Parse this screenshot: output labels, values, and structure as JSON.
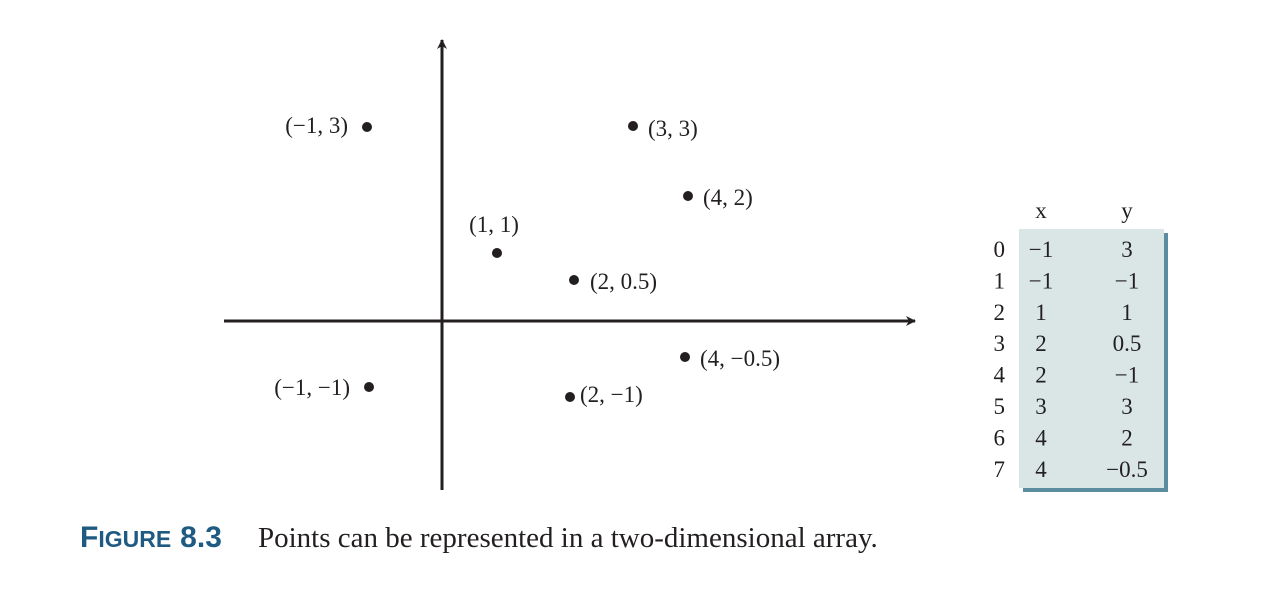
{
  "chart_data": {
    "type": "scatter",
    "points": [
      {
        "x": -1,
        "y": 3,
        "label": "(−1, 3)"
      },
      {
        "x": 3,
        "y": 3,
        "label": "(3, 3)"
      },
      {
        "x": 4,
        "y": 2,
        "label": "(4, 2)"
      },
      {
        "x": 1,
        "y": 1,
        "label": "(1, 1)"
      },
      {
        "x": 2,
        "y": 0.5,
        "label": "(2, 0.5)"
      },
      {
        "x": 4,
        "y": -0.5,
        "label": "(4, −0.5)"
      },
      {
        "x": -1,
        "y": -1,
        "label": "(−1, −1)"
      },
      {
        "x": 2,
        "y": -1,
        "label": "(2, −1)"
      }
    ],
    "grid": false
  },
  "table": {
    "headers": [
      "x",
      "y"
    ],
    "rows": [
      {
        "index": "0",
        "x": "−1",
        "y": "3"
      },
      {
        "index": "1",
        "x": "−1",
        "y": "−1"
      },
      {
        "index": "2",
        "x": "1",
        "y": "1"
      },
      {
        "index": "3",
        "x": "2",
        "y": "0.5"
      },
      {
        "index": "4",
        "x": "2",
        "y": "−1"
      },
      {
        "index": "5",
        "x": "3",
        "y": "3"
      },
      {
        "index": "6",
        "x": "4",
        "y": "2"
      },
      {
        "index": "7",
        "x": "4",
        "y": "−0.5"
      }
    ],
    "fill_color": "#d9e6e5",
    "shadow_color": "#5b8da1"
  },
  "caption": {
    "label_first": "F",
    "label_rest": "IGURE",
    "number": "8.3",
    "text": "Points can be represented in a two-dimensional array."
  },
  "colors": {
    "ink": "#231f20",
    "caption_label": "#1f5a82"
  }
}
